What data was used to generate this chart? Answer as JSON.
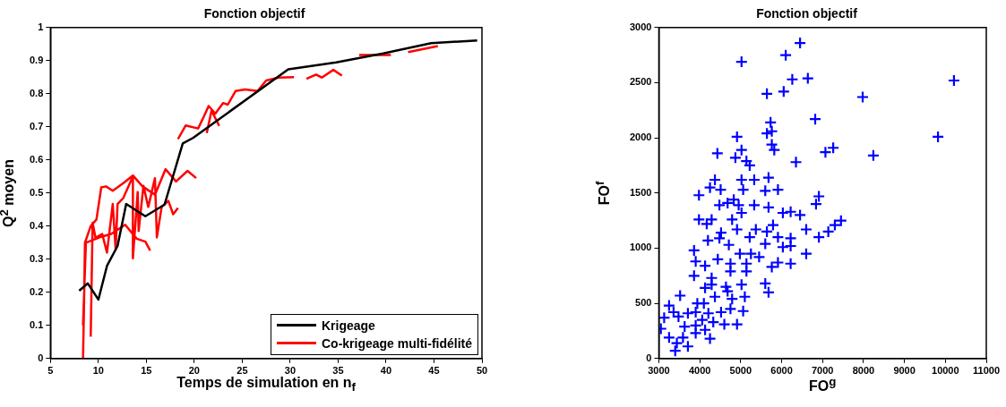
{
  "chart_data": [
    {
      "type": "line",
      "title": "Fonction objectif",
      "xlabel": "Temps de simulation en n$_{f}$",
      "ylabel": "Q$^{2}$ moyen",
      "xlim": [
        5,
        50
      ],
      "xticks": [
        5,
        10,
        15,
        20,
        25,
        30,
        35,
        40,
        45,
        50
      ],
      "ylim": [
        0,
        1
      ],
      "yticks": [
        0,
        0.1,
        0.2,
        0.3,
        0.4,
        0.5,
        0.6,
        0.7,
        0.8,
        0.9,
        1
      ],
      "marker": "none",
      "legend": "bottom right",
      "series": [
        {
          "name": "Krigeage",
          "color": "#000000",
          "x": [
            8,
            8.9,
            10,
            10.9,
            12,
            12.9,
            14.9,
            16.9,
            18.8,
            19.9,
            29.8,
            34.8,
            39.7,
            44.7,
            49.5
          ],
          "values": [
            0.205,
            0.227,
            0.178,
            0.28,
            0.34,
            0.467,
            0.43,
            0.465,
            0.65,
            0.667,
            0.874,
            0.895,
            0.922,
            0.953,
            0.961
          ]
        },
        {
          "name": "Co-krigeage multi-fidélité",
          "color": "#ff0000",
          "x": [
            8.4,
            8.5,
            8.6,
            9.2,
            9.8,
            10.3,
            10.8,
            11.5,
            12.6,
            13.6,
            14.6,
            15.9,
            17,
            18.1,
            19.3,
            20.2,
            null,
            8.4,
            8.7,
            10.2,
            11.3,
            12.8,
            14,
            14.9,
            15.4,
            null,
            9.2,
            9.4,
            9.7,
            10.4,
            10.9,
            11.5,
            11.8,
            12,
            12.6,
            13.6,
            13.6,
            14.1,
            14.2,
            14.7,
            15.2,
            15.5,
            15.9,
            16.1,
            16.6,
            17.3,
            17.8,
            18.3,
            null,
            18.3,
            19.1,
            20.4,
            21,
            21.5,
            22.2,
            23,
            23.5,
            24.3,
            25.3,
            26.6,
            27.5,
            28.8,
            30.4,
            null,
            21.3,
            21.8,
            22.6,
            null,
            31.7,
            32.7,
            33.3,
            34.5,
            35.4,
            null,
            37.2,
            40.5,
            null,
            42.3,
            45.4
          ],
          "values": [
            0,
            0.155,
            0.35,
            0.4,
            0.42,
            0.517,
            0.52,
            0.507,
            0.53,
            0.553,
            0.52,
            0.495,
            0.572,
            0.535,
            0.567,
            0.545,
            null,
            0.1,
            0.35,
            0.367,
            0.376,
            0.404,
            0.362,
            0.353,
            0.326,
            null,
            0.066,
            0.41,
            0.365,
            0.376,
            0.32,
            0.467,
            0.33,
            0.467,
            0.485,
            0.55,
            0.303,
            0.503,
            0.385,
            0.522,
            0.458,
            0.495,
            0.545,
            0.366,
            0.458,
            0.476,
            0.436,
            0.455,
            null,
            0.663,
            0.704,
            0.695,
            0.731,
            0.763,
            0.74,
            0.772,
            0.767,
            0.808,
            0.813,
            0.808,
            0.84,
            0.849,
            0.85,
            null,
            0.681,
            0.749,
            0.703,
            null,
            0.845,
            0.858,
            0.849,
            0.872,
            0.855,
            null,
            0.917,
            0.917,
            null,
            0.926,
            0.944
          ]
        }
      ]
    },
    {
      "type": "scatter",
      "title": "Fonction objectif",
      "xlabel": "FO$^{g}$",
      "ylabel": "FO$^{f}$",
      "xlim": [
        3000,
        11000
      ],
      "xticks": [
        3000,
        4000,
        5000,
        6000,
        7000,
        8000,
        9000,
        10000,
        11000
      ],
      "ylim": [
        0,
        3000
      ],
      "yticks": [
        0,
        500,
        1000,
        1500,
        2000,
        2500,
        3000
      ],
      "marker": "cross",
      "color": "#0000ff",
      "x": [
        6450,
        5020,
        6100,
        6260,
        6640,
        10210,
        5640,
        6050,
        7980,
        6820,
        5730,
        5760,
        5640,
        4910,
        9820,
        5760,
        5020,
        5820,
        4430,
        7070,
        7260,
        8240,
        4870,
        5140,
        6350,
        5220,
        5680,
        5020,
        5330,
        4370,
        4250,
        4510,
        5060,
        5600,
        5910,
        3980,
        6910,
        4830,
        4680,
        4480,
        4950,
        5330,
        5680,
        6840,
        5020,
        6030,
        6220,
        6450,
        3980,
        4290,
        4790,
        4170,
        7450,
        7300,
        5790,
        7140,
        4520,
        6600,
        5370,
        4910,
        5640,
        4480,
        5220,
        5910,
        6220,
        6910,
        4200,
        4710,
        5600,
        3860,
        6030,
        6220,
        4980,
        5250,
        5450,
        6600,
        3900,
        4440,
        4750,
        5910,
        6220,
        5140,
        5760,
        4130,
        4750,
        3860,
        5140,
        4290,
        5600,
        5680,
        4290,
        4640,
        5020,
        4130,
        4680,
        5100,
        3520,
        4370,
        4790,
        3250,
        3940,
        4100,
        5060,
        4750,
        3360,
        3130,
        3710,
        3900,
        4210,
        4520,
        3480,
        4060,
        3050,
        3900,
        4330,
        4600,
        4910,
        3630,
        4130,
        3250,
        3590,
        3900,
        4250,
        3440,
        3710,
        3400
      ],
      "values": [
        2860,
        2690,
        2750,
        2530,
        2540,
        2520,
        2400,
        2420,
        2370,
        2170,
        2140,
        2060,
        2040,
        2010,
        2010,
        1940,
        1890,
        1890,
        1860,
        1870,
        1910,
        1840,
        1820,
        1790,
        1780,
        1750,
        1640,
        1620,
        1620,
        1620,
        1550,
        1530,
        1530,
        1520,
        1530,
        1480,
        1470,
        1440,
        1410,
        1390,
        1390,
        1390,
        1370,
        1400,
        1320,
        1320,
        1330,
        1300,
        1260,
        1260,
        1260,
        1220,
        1250,
        1210,
        1210,
        1150,
        1140,
        1170,
        1170,
        1170,
        1150,
        1090,
        1100,
        1100,
        1090,
        1100,
        1070,
        1030,
        1040,
        980,
        1010,
        1020,
        950,
        950,
        920,
        950,
        880,
        900,
        860,
        870,
        860,
        860,
        830,
        840,
        790,
        750,
        790,
        730,
        680,
        600,
        670,
        650,
        670,
        640,
        610,
        560,
        570,
        560,
        540,
        480,
        500,
        500,
        430,
        450,
        420,
        370,
        410,
        420,
        410,
        420,
        380,
        350,
        270,
        300,
        330,
        310,
        310,
        290,
        260,
        190,
        190,
        230,
        180,
        140,
        110,
        70
      ]
    }
  ]
}
